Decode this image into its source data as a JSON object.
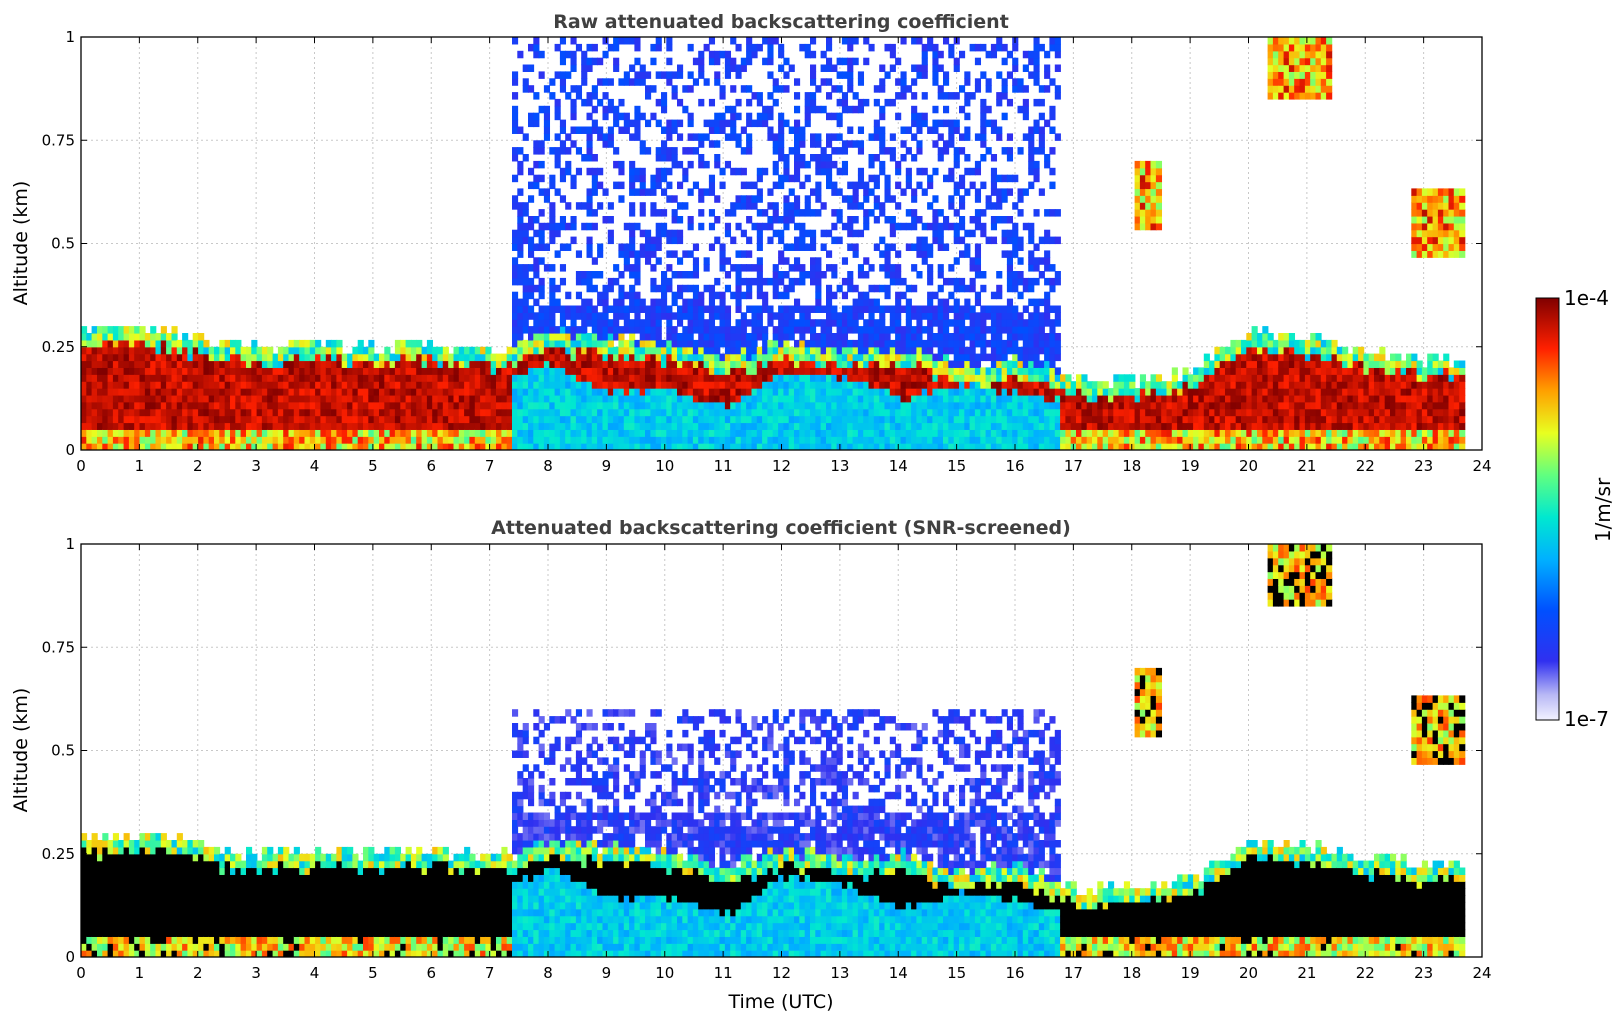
{
  "chart_data": {
    "type": "heatmap",
    "shared": {
      "xlabel": "Time (UTC)",
      "ylabel": "Altitude (km)",
      "xlim": [
        0,
        24
      ],
      "ylim": [
        0,
        1
      ],
      "xticks": [
        0,
        1,
        2,
        3,
        4,
        5,
        6,
        7,
        8,
        9,
        10,
        11,
        12,
        13,
        14,
        15,
        16,
        17,
        18,
        19,
        20,
        21,
        22,
        23,
        24
      ],
      "yticks": [
        0,
        0.25,
        0.5,
        0.75,
        1
      ],
      "ytick_labels": [
        "0",
        "0.25",
        "0.5",
        "0.75",
        "1"
      ],
      "grid": true
    },
    "panels": [
      {
        "title": "Raw attenuated backscattering coefficient"
      },
      {
        "title": "Attenuated backscattering coefficient (SNR-screened)"
      }
    ],
    "colorbar": {
      "label": "1/m/sr",
      "max_label": "1e-4",
      "min_label": "1e-7",
      "scale": "log",
      "range": [
        1e-07,
        0.0001
      ],
      "colormap": "jet"
    },
    "features": {
      "data_end_hour": 23.7,
      "boundary_layer_top_km": [
        0.29,
        0.3,
        0.27,
        0.25,
        0.26,
        0.25,
        0.26,
        0.24,
        0.28,
        0.27,
        0.26,
        0.22,
        0.26,
        0.24,
        0.25,
        0.2,
        0.22,
        0.17,
        0.17,
        0.19,
        0.29,
        0.27,
        0.24,
        0.22
      ],
      "cloud_base_km": [
        0.15,
        0.16,
        0.14,
        0.12,
        0.14,
        0.13,
        0.16,
        0.17,
        0.22,
        0.15,
        0.16,
        0.11,
        0.2,
        0.19,
        0.13,
        0.17,
        0.15,
        0.12,
        0.11,
        0.1,
        0.18,
        0.15,
        0.13,
        0.14
      ],
      "noise_period_hours": [
        7.3,
        16.7
      ],
      "elevated_aerosol": [
        {
          "hour_start": 18.0,
          "hour_end": 18.5,
          "alt_km": 0.62
        },
        {
          "hour_start": 22.7,
          "hour_end": 23.7,
          "alt_km": 0.55
        },
        {
          "hour_start": 20.3,
          "hour_end": 21.4,
          "alt_km": 0.93
        }
      ]
    }
  }
}
